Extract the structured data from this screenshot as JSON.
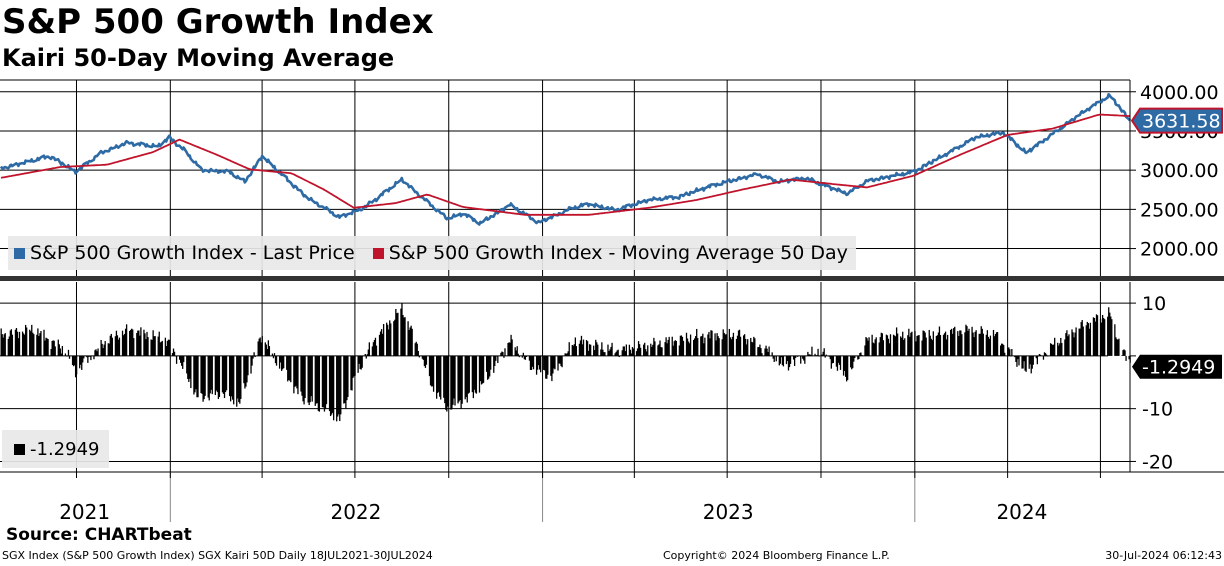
{
  "header": {
    "title": "S&P 500 Growth Index",
    "subtitle": "Kairi 50-Day Moving Average"
  },
  "source": "Source: CHARTbeat",
  "footer": {
    "left": "SGX Index (S&P 500 Growth Index) SGX Kairi 50D  Daily 18JUL2021-30JUL2024",
    "middle": "Copyright© 2024 Bloomberg Finance L.P.",
    "right": "30-Jul-2024 06:12:43"
  },
  "colors": {
    "price": "#2e6aa4",
    "ma": "#c0142c",
    "kairi": "#000000"
  },
  "chart_data": [
    {
      "type": "line",
      "panel": "upper",
      "xlim": [
        "2021-07-18",
        "2024-07-30"
      ],
      "ylim": [
        1650,
        4150
      ],
      "yticks": [
        2000,
        2500,
        3000,
        3500,
        4000
      ],
      "ytick_labels": [
        "2000.00",
        "2500.00",
        "3000.00",
        "3500.00",
        "4000.00"
      ],
      "grid": true,
      "legend_placement": "bottom-left",
      "last_value_label": "3631.58",
      "series": [
        {
          "name": "S&P 500 Growth Index - Last Price",
          "color": "#2e6aa4",
          "points": [
            [
              "2021-07-18",
              3020
            ],
            [
              "2021-08-15",
              3110
            ],
            [
              "2021-09-05",
              3180
            ],
            [
              "2021-09-30",
              2980
            ],
            [
              "2021-10-25",
              3220
            ],
            [
              "2021-11-20",
              3350
            ],
            [
              "2021-12-20",
              3300
            ],
            [
              "2021-12-31",
              3420
            ],
            [
              "2022-01-15",
              3250
            ],
            [
              "2022-02-01",
              3000
            ],
            [
              "2022-02-28",
              2980
            ],
            [
              "2022-03-15",
              2850
            ],
            [
              "2022-04-01",
              3180
            ],
            [
              "2022-04-20",
              2950
            ],
            [
              "2022-05-15",
              2650
            ],
            [
              "2022-06-16",
              2400
            ],
            [
              "2022-07-10",
              2520
            ],
            [
              "2022-08-16",
              2880
            ],
            [
              "2022-09-05",
              2650
            ],
            [
              "2022-09-30",
              2380
            ],
            [
              "2022-10-15",
              2450
            ],
            [
              "2022-11-01",
              2320
            ],
            [
              "2022-11-30",
              2560
            ],
            [
              "2022-12-28",
              2330
            ],
            [
              "2023-01-31",
              2520
            ],
            [
              "2023-02-15",
              2570
            ],
            [
              "2023-03-13",
              2490
            ],
            [
              "2023-04-15",
              2620
            ],
            [
              "2023-05-15",
              2660
            ],
            [
              "2023-06-15",
              2800
            ],
            [
              "2023-07-31",
              2950
            ],
            [
              "2023-08-20",
              2850
            ],
            [
              "2023-09-15",
              2900
            ],
            [
              "2023-10-27",
              2700
            ],
            [
              "2023-11-15",
              2860
            ],
            [
              "2023-12-31",
              2980
            ],
            [
              "2024-01-31",
              3200
            ],
            [
              "2024-03-01",
              3420
            ],
            [
              "2024-03-28",
              3480
            ],
            [
              "2024-04-19",
              3220
            ],
            [
              "2024-05-15",
              3460
            ],
            [
              "2024-06-15",
              3750
            ],
            [
              "2024-07-10",
              3950
            ],
            [
              "2024-07-20",
              3800
            ],
            [
              "2024-07-30",
              3631.58
            ]
          ]
        },
        {
          "name": "S&P 500 Growth Index - Moving Average 50 Day",
          "color": "#c0142c",
          "points": [
            [
              "2021-07-18",
              2900
            ],
            [
              "2021-09-15",
              3040
            ],
            [
              "2021-10-31",
              3070
            ],
            [
              "2021-12-15",
              3230
            ],
            [
              "2022-01-10",
              3390
            ],
            [
              "2022-02-15",
              3200
            ],
            [
              "2022-03-20",
              3010
            ],
            [
              "2022-04-30",
              2960
            ],
            [
              "2022-06-01",
              2750
            ],
            [
              "2022-06-30",
              2520
            ],
            [
              "2022-08-10",
              2580
            ],
            [
              "2022-09-10",
              2690
            ],
            [
              "2022-10-15",
              2530
            ],
            [
              "2022-12-15",
              2430
            ],
            [
              "2023-02-15",
              2430
            ],
            [
              "2023-04-15",
              2520
            ],
            [
              "2023-06-01",
              2620
            ],
            [
              "2023-07-15",
              2750
            ],
            [
              "2023-09-01",
              2880
            ],
            [
              "2023-10-15",
              2820
            ],
            [
              "2023-11-15",
              2780
            ],
            [
              "2023-12-31",
              2930
            ],
            [
              "2024-02-15",
              3200
            ],
            [
              "2024-04-01",
              3450
            ],
            [
              "2024-05-15",
              3530
            ],
            [
              "2024-06-30",
              3710
            ],
            [
              "2024-07-30",
              3690
            ]
          ]
        }
      ]
    },
    {
      "type": "bar",
      "panel": "lower",
      "xlim": [
        "2021-07-18",
        "2024-07-30"
      ],
      "ylim": [
        -22,
        14
      ],
      "yticks": [
        10,
        0,
        -10,
        -20
      ],
      "ytick_labels": [
        "10",
        "",
        "-10",
        "-20"
      ],
      "grid": true,
      "legend_placement": "bottom-left",
      "last_value_label": "-1.2949",
      "series": [
        {
          "name": "-1.2949",
          "color": "#000000",
          "points": [
            [
              "2021-07-18",
              4
            ],
            [
              "2021-08-20",
              5
            ],
            [
              "2021-09-20",
              1
            ],
            [
              "2021-09-30",
              -3
            ],
            [
              "2021-10-31",
              3
            ],
            [
              "2021-11-22",
              5
            ],
            [
              "2021-12-28",
              3
            ],
            [
              "2022-01-10",
              -1
            ],
            [
              "2022-01-28",
              -8
            ],
            [
              "2022-02-20",
              -7
            ],
            [
              "2022-03-10",
              -9
            ],
            [
              "2022-03-31",
              4
            ],
            [
              "2022-04-15",
              -1
            ],
            [
              "2022-05-10",
              -8
            ],
            [
              "2022-05-31",
              -10
            ],
            [
              "2022-06-16",
              -12
            ],
            [
              "2022-07-01",
              -4
            ],
            [
              "2022-07-20",
              3
            ],
            [
              "2022-08-16",
              9
            ],
            [
              "2022-08-31",
              2
            ],
            [
              "2022-09-15",
              -6
            ],
            [
              "2022-09-30",
              -10
            ],
            [
              "2022-10-20",
              -8
            ],
            [
              "2022-11-05",
              -5
            ],
            [
              "2022-11-30",
              3
            ],
            [
              "2022-12-20",
              -2
            ],
            [
              "2023-01-10",
              -4
            ],
            [
              "2023-02-02",
              3
            ],
            [
              "2023-03-13",
              1
            ],
            [
              "2023-04-15",
              2
            ],
            [
              "2023-05-10",
              3
            ],
            [
              "2023-06-15",
              4
            ],
            [
              "2023-07-15",
              4
            ],
            [
              "2023-08-10",
              1
            ],
            [
              "2023-08-25",
              -2
            ],
            [
              "2023-09-30",
              1
            ],
            [
              "2023-10-27",
              -4
            ],
            [
              "2023-11-15",
              3
            ],
            [
              "2023-12-15",
              4
            ],
            [
              "2024-01-20",
              4
            ],
            [
              "2024-02-20",
              5
            ],
            [
              "2024-03-20",
              4
            ],
            [
              "2024-04-19",
              -3
            ],
            [
              "2024-05-15",
              2
            ],
            [
              "2024-06-15",
              6
            ],
            [
              "2024-07-10",
              8
            ],
            [
              "2024-07-22",
              1
            ],
            [
              "2024-07-30",
              -1.2949
            ]
          ]
        }
      ]
    }
  ],
  "x_axis": {
    "year_labels": [
      "2021",
      "2022",
      "2023",
      "2024"
    ]
  }
}
